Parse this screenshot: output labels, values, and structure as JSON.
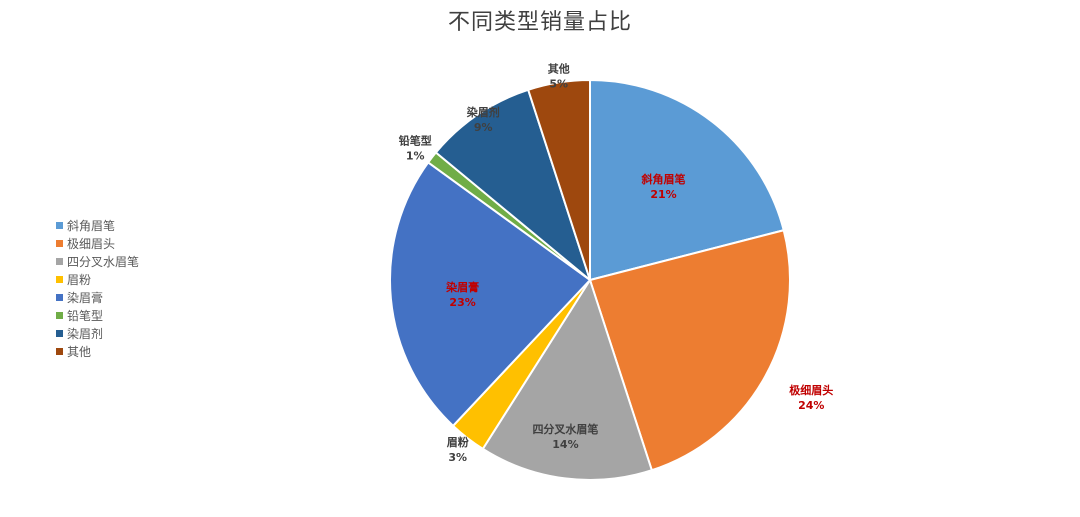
{
  "chart_data": {
    "type": "pie",
    "title": "不同类型销量占比",
    "slices": [
      {
        "label": "斜角眉笔",
        "value": 21,
        "pct_label": "21%",
        "color": "#5B9BD5",
        "label_color": "#C00000"
      },
      {
        "label": "极细眉头",
        "value": 24,
        "pct_label": "24%",
        "color": "#ED7D31",
        "label_color": "#C00000"
      },
      {
        "label": "四分叉水眉笔",
        "value": 14,
        "pct_label": "14%",
        "color": "#A5A5A5",
        "label_color": "#404040"
      },
      {
        "label": "眉粉",
        "value": 3,
        "pct_label": "3%",
        "color": "#FFC000",
        "label_color": "#404040"
      },
      {
        "label": "染眉膏",
        "value": 23,
        "pct_label": "23%",
        "color": "#4472C4",
        "label_color": "#C00000"
      },
      {
        "label": "铅笔型",
        "value": 1,
        "pct_label": "1%",
        "color": "#70AD47",
        "label_color": "#404040"
      },
      {
        "label": "染眉剂",
        "value": 9,
        "pct_label": "9%",
        "color": "#255E91",
        "label_color": "#404040"
      },
      {
        "label": "其他",
        "value": 5,
        "pct_label": "5%",
        "color": "#9E480E",
        "label_color": "#404040"
      }
    ],
    "legend": "left"
  }
}
